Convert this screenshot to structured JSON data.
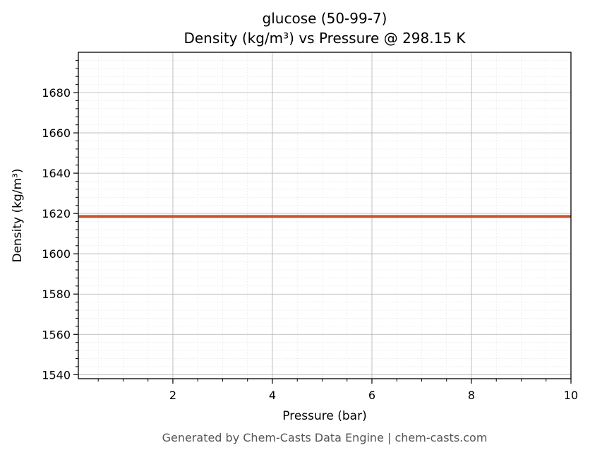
{
  "chart_data": {
    "type": "line",
    "title": "glucose (50-99-7)",
    "subtitle": "Density (kg/m³) vs Pressure @ 298.15 K",
    "xlabel": "Pressure (bar)",
    "ylabel": "Density (kg/m³)",
    "xlim": [
      0.1,
      10
    ],
    "ylim": [
      1538,
      1700
    ],
    "x_ticks": [
      2,
      4,
      6,
      8,
      10
    ],
    "y_ticks": [
      1540,
      1560,
      1580,
      1600,
      1620,
      1640,
      1660,
      1680
    ],
    "grid": true,
    "minor_grid": true,
    "series": [
      {
        "x": [
          0.1,
          1,
          2,
          3,
          4,
          5,
          6,
          7,
          8,
          9,
          10
        ],
        "values": [
          1618.5,
          1618.5,
          1618.5,
          1618.5,
          1618.5,
          1618.5,
          1618.5,
          1618.5,
          1618.5,
          1618.5,
          1618.5
        ],
        "color": "#c8522a"
      }
    ]
  },
  "footer": "Generated by Chem-Casts Data Engine | chem-casts.com"
}
